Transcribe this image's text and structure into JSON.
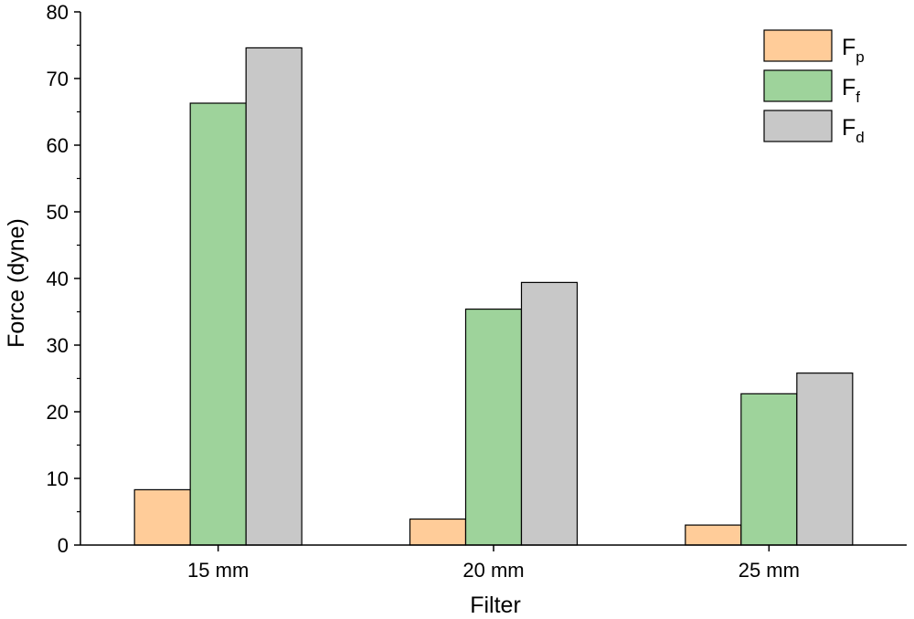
{
  "chart_data": {
    "type": "bar",
    "categories": [
      "15 mm",
      "20 mm",
      "25 mm"
    ],
    "series": [
      {
        "name": "F",
        "sub": "p",
        "color": "#ffcc99",
        "values": [
          8.3,
          3.9,
          3.0
        ]
      },
      {
        "name": "F",
        "sub": "f",
        "color": "#9ed39b",
        "values": [
          66.3,
          35.4,
          22.7
        ]
      },
      {
        "name": "F",
        "sub": "d",
        "color": "#c8c8c8",
        "values": [
          74.6,
          39.4,
          25.8
        ]
      }
    ],
    "xlabel": "Filter",
    "ylabel": "Force (dyne)",
    "ylim": [
      0,
      80
    ],
    "yticks": [
      "0",
      "10",
      "20",
      "30",
      "40",
      "50",
      "60",
      "70",
      "80"
    ],
    "legend_position": "top-right",
    "grid": false
  }
}
